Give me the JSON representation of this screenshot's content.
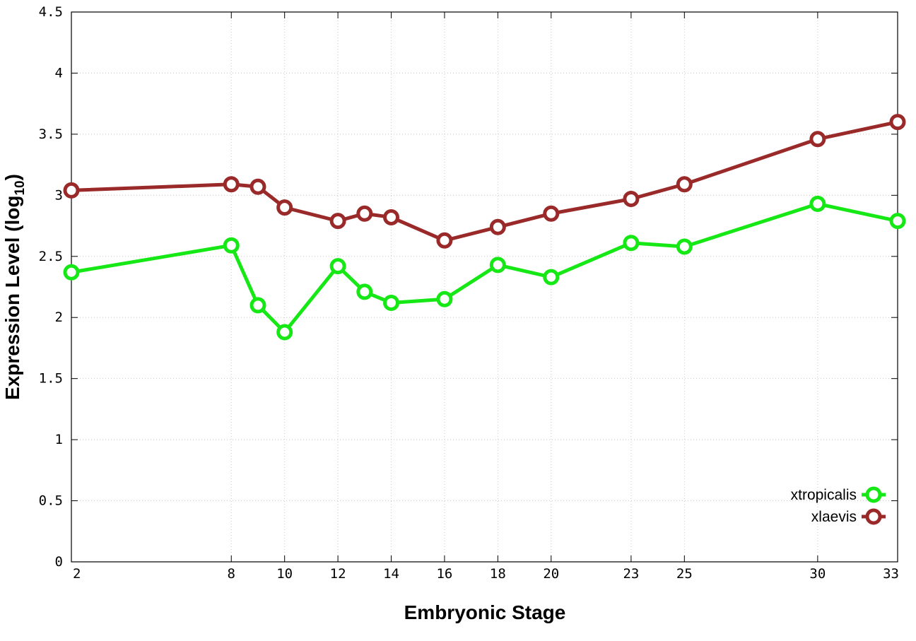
{
  "chart_data": {
    "type": "line",
    "xlabel": "Embryonic Stage",
    "ylabel_main": "Expression Level (log",
    "ylabel_sub": "10",
    "ylabel_end": ")",
    "x": [
      2,
      8,
      9,
      10,
      12,
      13,
      14,
      16,
      18,
      20,
      23,
      25,
      30,
      33
    ],
    "x_ticks": [
      {
        "value": 2,
        "label": "2"
      },
      {
        "value": 8,
        "label": "8"
      },
      {
        "value": 10,
        "label": "10"
      },
      {
        "value": 12,
        "label": "12"
      },
      {
        "value": 14,
        "label": "14"
      },
      {
        "value": 16,
        "label": "16"
      },
      {
        "value": 18,
        "label": "18"
      },
      {
        "value": 20,
        "label": "20"
      },
      {
        "value": 23,
        "label": "23"
      },
      {
        "value": 25,
        "label": "25"
      },
      {
        "value": 30,
        "label": "30"
      },
      {
        "value": 33,
        "label": "33"
      }
    ],
    "y_ticks": [
      {
        "value": 0,
        "label": "0"
      },
      {
        "value": 0.5,
        "label": "0.5"
      },
      {
        "value": 1,
        "label": "1"
      },
      {
        "value": 1.5,
        "label": "1.5"
      },
      {
        "value": 2,
        "label": "2"
      },
      {
        "value": 2.5,
        "label": "2.5"
      },
      {
        "value": 3,
        "label": "3"
      },
      {
        "value": 3.5,
        "label": "3.5"
      },
      {
        "value": 4,
        "label": "4"
      },
      {
        "value": 4.5,
        "label": "4.5"
      }
    ],
    "xlim": [
      2,
      33
    ],
    "ylim": [
      0,
      4.5
    ],
    "grid": true,
    "legend_position": "bottom-right",
    "series": [
      {
        "name": "xtropicalis",
        "color": "#16e816",
        "values": [
          2.37,
          2.59,
          2.1,
          1.88,
          2.42,
          2.21,
          2.12,
          2.15,
          2.43,
          2.33,
          2.61,
          2.58,
          2.93,
          2.79
        ]
      },
      {
        "name": "xlaevis",
        "color": "#9a2a2a",
        "values": [
          3.04,
          3.09,
          3.07,
          2.9,
          2.79,
          2.85,
          2.82,
          2.63,
          2.74,
          2.85,
          2.97,
          3.09,
          3.46,
          3.6
        ]
      }
    ]
  }
}
